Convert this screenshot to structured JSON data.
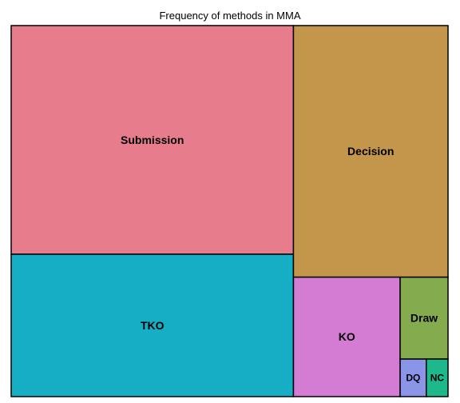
{
  "chart_data": {
    "type": "treemap",
    "title": "Frequency of methods in MMA",
    "items": [
      {
        "name": "Submission",
        "value": 395,
        "color": "#E67C8C"
      },
      {
        "name": "TKO",
        "value": 246,
        "color": "#15AEC5"
      },
      {
        "name": "Decision",
        "value": 238,
        "color": "#C4964C"
      },
      {
        "name": "KO",
        "value": 78,
        "color": "#D47CD4"
      },
      {
        "name": "Draw",
        "value": 24,
        "color": "#84AC4E"
      },
      {
        "name": "DQ",
        "value": 6,
        "color": "#8A95E8"
      },
      {
        "name": "NC",
        "value": 5,
        "color": "#1DB88C"
      }
    ]
  }
}
